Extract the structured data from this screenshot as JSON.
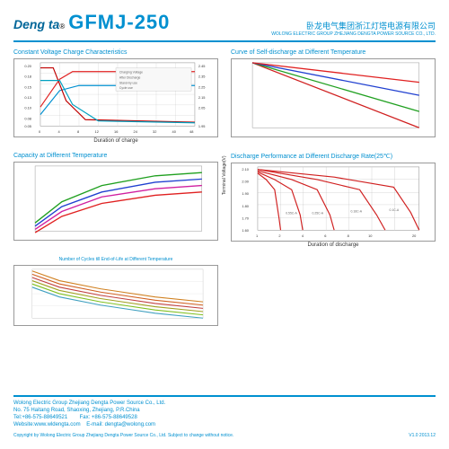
{
  "header": {
    "brand": "Deng ta",
    "reg": "®",
    "model": "GFMJ-250",
    "company_cn": "卧龙电气集团浙江灯塔电源有限公司",
    "company_en": "WOLONG ELECTRIC GROUP ZHEJIANG DENGTA POWER SOURCE CO., LTD."
  },
  "charts": [
    {
      "title": "Constant Voltage Charge Characteristics",
      "xlabel": "Duration of charge",
      "type": "multi-line",
      "xlim": [
        0,
        48
      ],
      "ylim_left": [
        0.05,
        0.2
      ],
      "ylim_right": [
        1.95,
        2.45
      ],
      "xtick_labels": [
        "0",
        "4",
        "8",
        "12",
        "16",
        "24",
        "32",
        "40",
        "48"
      ],
      "background_color": "#ffffff",
      "grid_color": "#bbbbbb",
      "series": [
        {
          "label": "Charging Voltage",
          "color": "#e02020",
          "width": 1.2,
          "points": [
            [
              0,
              30
            ],
            [
              6,
              74
            ],
            [
              10,
              86
            ],
            [
              48,
              86
            ]
          ]
        },
        {
          "label": "Stand-by Voltage",
          "color": "#0090d0",
          "width": 1.2,
          "points": [
            [
              0,
              18
            ],
            [
              6,
              56
            ],
            [
              12,
              64
            ],
            [
              48,
              64
            ]
          ]
        },
        {
          "label": "Current (cycle)",
          "color": "#c00000",
          "width": 1.2,
          "points": [
            [
              0,
              92
            ],
            [
              4,
              92
            ],
            [
              8,
              40
            ],
            [
              14,
              10
            ],
            [
              48,
              6
            ]
          ]
        },
        {
          "label": "Current (standby)",
          "color": "#00a0c0",
          "width": 1.2,
          "points": [
            [
              0,
              72
            ],
            [
              6,
              72
            ],
            [
              10,
              34
            ],
            [
              18,
              8
            ],
            [
              48,
              5
            ]
          ]
        }
      ],
      "legend_items": [
        "Charging Voltage",
        "After Discharge",
        "Stand-by use",
        "Cycle use"
      ]
    },
    {
      "title": "Curve of Self-discharge at Different Temperature",
      "xlabel": "",
      "type": "multi-line",
      "xlim": [
        0,
        12
      ],
      "ylim": [
        40,
        100
      ],
      "background_color": "#ffffff",
      "grid_color": "#cccccc",
      "series": [
        {
          "color": "#d02020",
          "width": 1.3,
          "points": [
            [
              0,
              100
            ],
            [
              12,
              40
            ]
          ]
        },
        {
          "color": "#20a020",
          "width": 1.3,
          "points": [
            [
              0,
              100
            ],
            [
              12,
              55
            ]
          ]
        },
        {
          "color": "#2040d0",
          "width": 1.3,
          "points": [
            [
              0,
              100
            ],
            [
              12,
              70
            ]
          ]
        },
        {
          "color": "#e02020",
          "width": 1.3,
          "points": [
            [
              0,
              100
            ],
            [
              12,
              82
            ]
          ]
        }
      ]
    },
    {
      "title": "Capacity at Different Temperature",
      "xlabel": "",
      "type": "multi-line",
      "xlim": [
        0,
        25
      ],
      "ylim": [
        40,
        120
      ],
      "background_color": "#ffffff",
      "grid_color": "#cccccc",
      "series": [
        {
          "color": "#20a020",
          "width": 1.4,
          "points": [
            [
              0,
              50
            ],
            [
              4,
              76
            ],
            [
              10,
              96
            ],
            [
              18,
              108
            ],
            [
              25,
              112
            ]
          ]
        },
        {
          "color": "#2040d0",
          "width": 1.4,
          "points": [
            [
              0,
              46
            ],
            [
              4,
              70
            ],
            [
              10,
              88
            ],
            [
              18,
              100
            ],
            [
              25,
              104
            ]
          ]
        },
        {
          "color": "#d020a0",
          "width": 1.4,
          "points": [
            [
              0,
              42
            ],
            [
              4,
              64
            ],
            [
              10,
              82
            ],
            [
              18,
              92
            ],
            [
              25,
              96
            ]
          ]
        },
        {
          "color": "#e02020",
          "width": 1.4,
          "points": [
            [
              0,
              38
            ],
            [
              4,
              58
            ],
            [
              10,
              74
            ],
            [
              18,
              84
            ],
            [
              25,
              88
            ]
          ]
        }
      ]
    },
    {
      "title": "Discharge Performance at Different Discharge Rate(25℃)",
      "xlabel": "Duration of discharge",
      "ylabel": "Terminal Voltage(V)",
      "type": "multi-line",
      "xlim": [
        1,
        20
      ],
      "ylim": [
        1.6,
        2.1
      ],
      "ytick_labels": [
        "1.60",
        "1.70",
        "1.80",
        "1.90",
        "2.00",
        "2.10"
      ],
      "xtick_labels": [
        "1",
        "2",
        "4",
        "6",
        "8",
        "10",
        "20"
      ],
      "background_color": "#ffffff",
      "grid_color": "#aaaaaa",
      "series": [
        {
          "color": "#d02020",
          "width": 1.2,
          "points": [
            [
              1,
              2.05
            ],
            [
              2,
              2.0
            ],
            [
              3,
              1.92
            ],
            [
              3.5,
              1.7
            ],
            [
              3.7,
              1.6
            ]
          ]
        },
        {
          "color": "#d02020",
          "width": 1.2,
          "points": [
            [
              1,
              2.06
            ],
            [
              3,
              2.0
            ],
            [
              5,
              1.92
            ],
            [
              6,
              1.72
            ],
            [
              6.3,
              1.6
            ]
          ]
        },
        {
          "color": "#d02020",
          "width": 1.2,
          "points": [
            [
              1,
              2.07
            ],
            [
              5,
              2.0
            ],
            [
              8,
              1.92
            ],
            [
              9.5,
              1.72
            ],
            [
              10,
              1.6
            ]
          ]
        },
        {
          "color": "#d02020",
          "width": 1.2,
          "points": [
            [
              1,
              2.08
            ],
            [
              8,
              2.0
            ],
            [
              13,
              1.92
            ],
            [
              15,
              1.72
            ],
            [
              16,
              1.6
            ]
          ]
        },
        {
          "color": "#d02020",
          "width": 1.2,
          "points": [
            [
              1,
              2.08
            ],
            [
              10,
              2.02
            ],
            [
              17,
              1.94
            ],
            [
              19,
              1.74
            ],
            [
              20,
              1.6
            ]
          ]
        }
      ],
      "rate_labels": [
        "0.55C-A",
        "0.25C-A",
        "0.16C-A",
        "0.1C-A"
      ]
    }
  ],
  "chart5": {
    "title": "Number of Cycles till End-of-Life at Different Temperature",
    "type": "multi-line",
    "xlim": [
      0,
      250
    ],
    "ylim": [
      50,
      110
    ],
    "background_color": "#ffffff",
    "grid_color": "#cccccc",
    "series": [
      {
        "color": "#d08020",
        "width": 1.1,
        "points": [
          [
            0,
            108
          ],
          [
            40,
            96
          ],
          [
            100,
            86
          ],
          [
            180,
            76
          ],
          [
            250,
            70
          ]
        ]
      },
      {
        "color": "#d06020",
        "width": 1.1,
        "points": [
          [
            0,
            104
          ],
          [
            40,
            92
          ],
          [
            100,
            82
          ],
          [
            180,
            72
          ],
          [
            250,
            66
          ]
        ]
      },
      {
        "color": "#c04040",
        "width": 1.1,
        "points": [
          [
            0,
            100
          ],
          [
            40,
            88
          ],
          [
            100,
            78
          ],
          [
            180,
            68
          ],
          [
            250,
            62
          ]
        ]
      },
      {
        "color": "#a0a020",
        "width": 1.1,
        "points": [
          [
            0,
            96
          ],
          [
            40,
            84
          ],
          [
            100,
            74
          ],
          [
            180,
            64
          ],
          [
            250,
            58
          ]
        ]
      },
      {
        "color": "#80c020",
        "width": 1.1,
        "points": [
          [
            0,
            92
          ],
          [
            40,
            80
          ],
          [
            100,
            70
          ],
          [
            180,
            60
          ],
          [
            250,
            54
          ]
        ]
      },
      {
        "color": "#40a0c0",
        "width": 1.1,
        "points": [
          [
            0,
            88
          ],
          [
            40,
            76
          ],
          [
            100,
            66
          ],
          [
            180,
            56
          ],
          [
            250,
            50
          ]
        ]
      }
    ]
  },
  "footer": {
    "line1": "Wolong Electric Group Zhejiang Dengta Power Source Co., Ltd.",
    "line2": "No. 75 Haitang Road, Shaoxing, Zhejiang, P.R.China",
    "tel": "Tel:+86-575-88649521",
    "fax": "Fax: +86-575-88649528",
    "web": "Website:www.wldengta.com",
    "email": "E-mail: dengta@wolong.com",
    "copyright": "Copyright by Wolong Electric Group Zhejiang Dengta Power Source Co., Ltd. Subject to change without notice.",
    "version": "V1.0 2013.12"
  }
}
